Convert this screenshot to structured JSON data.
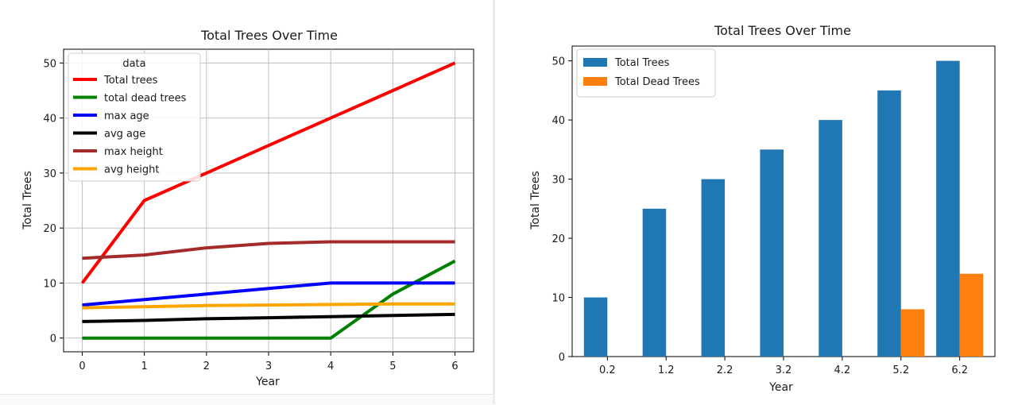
{
  "chart_data": [
    {
      "type": "line",
      "title": "Total Trees Over Time",
      "xlabel": "Year",
      "ylabel": "Total Trees",
      "xlim": [
        -0.3,
        6.3
      ],
      "ylim": [
        -2.5,
        52.5
      ],
      "xticks": [
        0,
        1,
        2,
        3,
        4,
        5,
        6
      ],
      "yticks": [
        0,
        10,
        20,
        30,
        40,
        50
      ],
      "grid": true,
      "legend_title": "data",
      "legend_position": "upper-left",
      "x": [
        0,
        1,
        2,
        3,
        4,
        5,
        6
      ],
      "series": [
        {
          "name": "Total trees",
          "color": "#ff0000",
          "values": [
            10,
            25,
            30,
            35,
            40,
            45,
            50
          ]
        },
        {
          "name": "total dead trees",
          "color": "#008000",
          "values": [
            0,
            0,
            0,
            0,
            0,
            8,
            14
          ]
        },
        {
          "name": "max age",
          "color": "#0000ff",
          "values": [
            6,
            7,
            8,
            9,
            10,
            10,
            10
          ]
        },
        {
          "name": "avg age",
          "color": "#000000",
          "values": [
            3,
            3.2,
            3.5,
            3.7,
            3.9,
            4.1,
            4.3
          ]
        },
        {
          "name": "max height",
          "color": "#a52a2a",
          "values": [
            14.5,
            15.1,
            16.4,
            17.2,
            17.5,
            17.5,
            17.5
          ]
        },
        {
          "name": "avg height",
          "color": "#ffa500",
          "values": [
            5.5,
            5.7,
            5.9,
            6,
            6.1,
            6.2,
            6.2
          ]
        }
      ]
    },
    {
      "type": "bar",
      "title": "Total Trees Over Time",
      "xlabel": "Year",
      "ylabel": "Total Trees",
      "xlim": [
        -0.6,
        6.6
      ],
      "ylim": [
        0,
        52.5
      ],
      "yticks": [
        0,
        10,
        20,
        30,
        40,
        50
      ],
      "categories": [
        "0.2",
        "1.2",
        "2.2",
        "3.2",
        "4.2",
        "5.2",
        "6.2"
      ],
      "grid": false,
      "legend_position": "upper-left",
      "series": [
        {
          "name": "Total Trees",
          "color": "#1f77b4",
          "values": [
            10,
            25,
            30,
            35,
            40,
            45,
            50
          ]
        },
        {
          "name": "Total Dead Trees",
          "color": "#ff7f0e",
          "values": [
            0,
            0,
            0,
            0,
            0,
            8,
            14
          ]
        }
      ]
    }
  ]
}
